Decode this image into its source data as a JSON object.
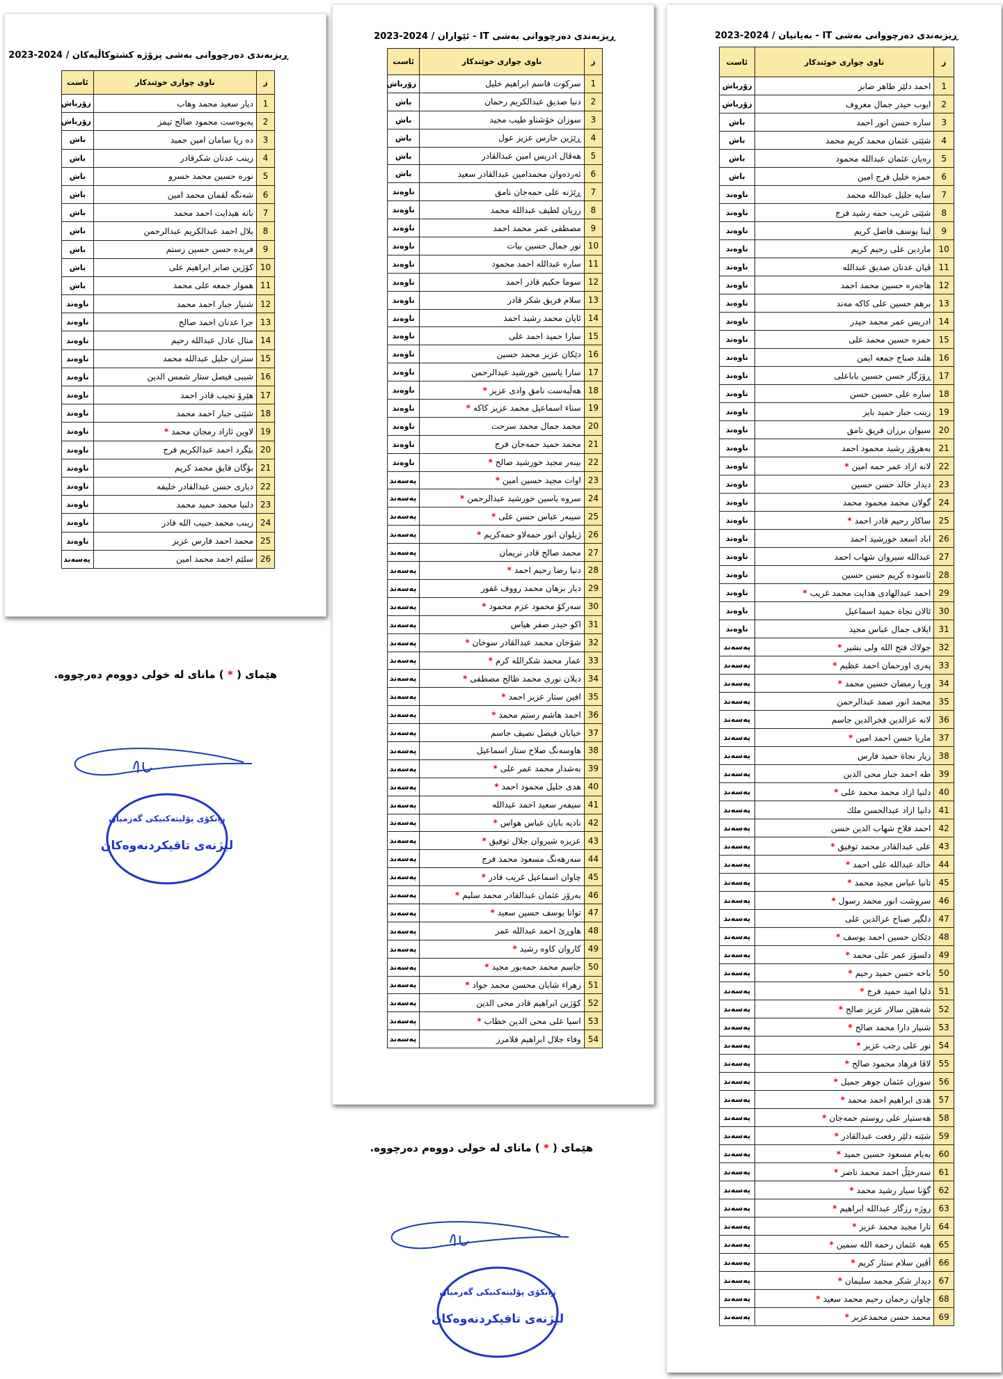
{
  "headers": [
    "ز",
    "ناوی چواری خوێندکار",
    "ئاست"
  ],
  "note": {
    "before": "هێمای (",
    "star": "*",
    "after": ") مانای لە خولی دووەم دەرچووە."
  },
  "stamp": {
    "top": "زانكۆی پۆلیتەكنیكی گەرمیان",
    "bottom": "لیژنەی تاقیكردنەوەكان"
  },
  "tables": [
    {
      "title": "ڕیزبەندی دەرچووانی بەشی پرۆژە کشتوکاڵیەکان / 2024-2023",
      "rows": [
        [
          1,
          "دیار سعید محمد وهاب",
          "زۆرباش"
        ],
        [
          2,
          "پەیوەست محمود صالح تیمز",
          "زۆرباش"
        ],
        [
          3,
          "دە ریا سامان امین حمید",
          "باش"
        ],
        [
          4,
          "زینب عدنان شکرقادر",
          "باش"
        ],
        [
          5,
          "نورە حسین محمد خسرو",
          "باش"
        ],
        [
          6,
          "شەنگە لقمان محمد امین",
          "باش"
        ],
        [
          7,
          "بانە هیدایت احمد محمد",
          "باش"
        ],
        [
          8,
          "بلال احمد عبدالکریم عبدالرحمن",
          "باش"
        ],
        [
          9,
          "فریدە حسن حسین رستم",
          "باش"
        ],
        [
          10,
          "کۆژین صابر ابراهیم علی",
          "باش"
        ],
        [
          11,
          "هموار جمعە علی محمد",
          "باش"
        ],
        [
          12,
          "شنیار جبار احمد محمد",
          "ناوەند"
        ],
        [
          13,
          "جرا عدنان احمد صالح",
          "ناوەند"
        ],
        [
          14,
          "منال عادل عبداللە رحیم",
          "ناوەند"
        ],
        [
          15,
          "ستران جلیل عبداللە محمد",
          "ناوەند"
        ],
        [
          16,
          "شیبی فیصل ستار شمس الدین",
          "ناوەند"
        ],
        [
          17,
          "هێرۆ نجیب قادر احمد",
          "ناوەند"
        ],
        [
          18,
          "شێتی جبار احمد محمد",
          "ناوەند"
        ],
        [
          19,
          "لاوین ئازاد رمجان محمد",
          "ناوەند",
          "*"
        ],
        [
          20,
          "بێگرد احمد عبدالکریم فرج",
          "ناوەند"
        ],
        [
          21,
          "بۆگان فایق محمد کریم",
          "ناوەند"
        ],
        [
          22,
          "دیاری حسن عبدالقادر خلیفە",
          "ناوەند"
        ],
        [
          23,
          "دلنیا محمد حمید محمد",
          "ناوەند"
        ],
        [
          24,
          "زینب محمد حبیب اللە قادر",
          "ناوەند"
        ],
        [
          25,
          "محمد احمد فارس عزیز",
          "ناوەند"
        ],
        [
          26,
          "سلێم احمد محمد امین",
          "پەسەند"
        ]
      ]
    },
    {
      "title": "ڕیزبەندی دەرچووانی بەشی IT - ئێواران / 2024-2023",
      "rows": [
        [
          1,
          "سرکوت قاسم ابراهیم خلیل",
          "زۆرباش"
        ],
        [
          2,
          "دنیا صدیق عبدالکریم رحمان",
          "باش"
        ],
        [
          3,
          "سوزان خۆشناو طیب مجید",
          "باش"
        ],
        [
          4,
          "ڕێژین حارس عزیز عول",
          "باش"
        ],
        [
          5,
          "هەڤال ادریس امین عبدالقادر",
          "باش"
        ],
        [
          6,
          "ئەردەوان محمدامین عبدالقادر سعید",
          "باش"
        ],
        [
          7,
          "ڕێژنە علی حمەجان نامق",
          "ناوەند"
        ],
        [
          8,
          "زریان لطیف عبداللە محمد",
          "ناوەند"
        ],
        [
          9,
          "مصطفی عمر محمد احمد",
          "ناوەند"
        ],
        [
          10,
          "نور جمال حسین بیات",
          "ناوەند"
        ],
        [
          11,
          "سارە عبداللە احمد محمود",
          "ناوەند"
        ],
        [
          12,
          "سوما حکیم قادر احمد",
          "ناوەند"
        ],
        [
          13,
          "سلام فریق شکر قادر",
          "ناوەند"
        ],
        [
          14,
          "ئاپان محمد رشید احمد",
          "ناوەند"
        ],
        [
          15,
          "سارا حمید احمد علی",
          "ناوەند"
        ],
        [
          16,
          "دێکان عزیز محمد حسین",
          "ناوەند"
        ],
        [
          17,
          "سارا یاسین خورشید عبدالرحمن",
          "ناوەند"
        ],
        [
          18,
          "هەڵبەست نامق وادی عزیز",
          "ناوەند",
          "*"
        ],
        [
          19,
          "سناء اسماعیل محمد عزیز کاکە",
          "ناوەند",
          "*"
        ],
        [
          20,
          "محمد جمال محمد سرحت",
          "ناوەند"
        ],
        [
          21,
          "محمد حمید حمەجان فرج",
          "ناوەند"
        ],
        [
          22,
          "بینەر مجید خورشید صالح",
          "ناوەند",
          "*"
        ],
        [
          23,
          "اوات مجید حسین امین",
          "پەسەند",
          "*"
        ],
        [
          24,
          "سروە یاسین خورشید عبدالرحمن",
          "پەسەند",
          "*"
        ],
        [
          25,
          "سیبەر عباس حسن علی",
          "پەسەند",
          "*"
        ],
        [
          26,
          "ژیلوان انور حمەلاو حمەکریم",
          "پەسەند",
          "*"
        ],
        [
          27,
          "محمد صالح قادر نریمان",
          "پەسەند"
        ],
        [
          28,
          "دنیا رضا رحیم احمد",
          "پەسەند",
          "*"
        ],
        [
          29,
          "دیار برهان محمد رووف غفور",
          "پەسەند"
        ],
        [
          30,
          "سەرکۆ محمود عزم محمود",
          "پەسەند",
          "*"
        ],
        [
          31,
          "اکو حیدر صفر هیاس",
          "پەسەند"
        ],
        [
          32,
          "شۆخان محمد عبدالقادر سوخان",
          "پەسەند",
          "*"
        ],
        [
          33,
          "عمار محمد شکراللە کرم",
          "پەسەند",
          "*"
        ],
        [
          34,
          "دیلان نوری محمد ظالح مصطفی",
          "پەسەند",
          "*"
        ],
        [
          35,
          "افین ستار عزیز احمد",
          "پەسەند",
          "*"
        ],
        [
          36,
          "احمد هاشم رستم محمد",
          "پەسەند",
          "*"
        ],
        [
          37,
          "خیابان فیصل نصیف جاسم",
          "پەسەند"
        ],
        [
          38,
          "هاوسەنگ صلاح ستار اسماعیل",
          "پەسەند"
        ],
        [
          39,
          "بەشدار محمد عمر علی",
          "پەسەند",
          "*"
        ],
        [
          40,
          "هدی جلیل محمود احمد",
          "پەسەند",
          "*"
        ],
        [
          41,
          "سیفەر سعید احمد عبداللە",
          "پەسەند"
        ],
        [
          42,
          "نادیە بابان عباس هواس",
          "پەسەند",
          "*"
        ],
        [
          43,
          "عزیزە شیروان جلال توفیق",
          "پەسەند",
          "*"
        ],
        [
          44,
          "سەرهەنگ مسعود محمد فرج",
          "پەسەند"
        ],
        [
          45,
          "چاوان اسماعیل غریب قادر",
          "پەسەند",
          "*"
        ],
        [
          46,
          "بەرۆز عثمان عبدالقادر محمد سلیم",
          "پەسەند",
          "*"
        ],
        [
          47,
          "توانا یوسف حسین سعید",
          "پەسەند",
          "*"
        ],
        [
          48,
          "هاوڕێ احمد عبداللە عمر",
          "پەسەند"
        ],
        [
          49,
          "کاروان کاوە رشید",
          "پەسەند",
          "*"
        ],
        [
          50,
          "جاسم محمد حمەبور مجید",
          "پەسەند",
          "*"
        ],
        [
          51,
          "زهراء شایان محسن محمد جواد",
          "پەسەند",
          "*"
        ],
        [
          52,
          "کۆژین ابراهیم قادر محی الدین",
          "پەسەند"
        ],
        [
          53,
          "اسیا علی محی الدین خطاب",
          "پەسەند",
          "*"
        ],
        [
          54,
          "وفاء جلال ابراهیم فلامرز",
          "پەسەند"
        ]
      ]
    },
    {
      "title": "ڕیزبەندی دەرچووانی بەشی IT - بەیانیان / 2024-2023",
      "rows": [
        [
          1,
          "احمد دلێر طاهر صابر",
          "زۆرباش"
        ],
        [
          2,
          "ایوب حیدر جمال معروف",
          "زۆرباش"
        ],
        [
          3,
          "سارە حسن انور احمد",
          "باش"
        ],
        [
          4,
          "شێتی عثمان محمد کریم محمد",
          "باش"
        ],
        [
          5,
          "رەیان عثمان عبداللە محمود",
          "باش"
        ],
        [
          6,
          "حمزە خلیل فرج امین",
          "باش"
        ],
        [
          7,
          "سایە جلیل عبداللە محمد",
          "ناوەند"
        ],
        [
          8,
          "شێتی غریب حمە رشید فرج",
          "ناوەند"
        ],
        [
          9,
          "لینا یوسف فاضل کریم",
          "ناوەند"
        ],
        [
          10,
          "ماردین علی رحیم کریم",
          "ناوەند"
        ],
        [
          11,
          "ڤیان عدنان صدیق عبداللە",
          "ناوەند"
        ],
        [
          12,
          "هاجەرە حسین محمد احمد",
          "ناوەند"
        ],
        [
          13,
          "برهم حسین علی کاکە مەند",
          "ناوەند"
        ],
        [
          14,
          "ادریس عمر محمد حیدر",
          "ناوەند"
        ],
        [
          15,
          "حمزە حسین محمد علی",
          "ناوەند"
        ],
        [
          16,
          "هلند صباح جمعە ایمن",
          "ناوەند"
        ],
        [
          17,
          "ڕۆژگار حسن حسین باباعلی",
          "ناوەند"
        ],
        [
          18,
          "سارە علی حسین حسن",
          "ناوەند"
        ],
        [
          19,
          "زینب جبار حمید بایز",
          "ناوەند"
        ],
        [
          20,
          "سیوان برزان فریق نامق",
          "ناوەند"
        ],
        [
          21,
          "بەهرۆز رشید محمود احمد",
          "ناوەند"
        ],
        [
          22,
          "لانە ازاد عمر حمە امین",
          "ناوەند",
          "*"
        ],
        [
          23,
          "دیدار خالد حسن حسین",
          "ناوەند"
        ],
        [
          24,
          "گولان محمد محمود محمد",
          "ناوەند"
        ],
        [
          25,
          "ساکار رحیم قادر احمد",
          "ناوەند",
          "*"
        ],
        [
          26,
          "اباد اسعد خورشید احمد",
          "ناوەند"
        ],
        [
          27,
          "عبداللە سیروان شهاب احمد",
          "ناوەند"
        ],
        [
          28,
          "ئاسودە کریم حسن حسین",
          "ناوەند"
        ],
        [
          29,
          "احمد عبدالهادی هدایت محمد غریب",
          "ناوەند",
          "*"
        ],
        [
          30,
          "ئالان نجاة حمید اسماعیل",
          "ناوەند"
        ],
        [
          31,
          "ایلاف جمال عباس مجید",
          "ناوەند"
        ],
        [
          32,
          "جولاك فتح اللە ولی بشیر",
          "پەسەند",
          "*"
        ],
        [
          33,
          "پەری اورحمان احمد عظیم",
          "پەسەند",
          "*"
        ],
        [
          34,
          "وریا رمضان حسین محمد",
          "پەسەند",
          "*"
        ],
        [
          35,
          "محمد انور صمد عبدالرحمن",
          "پەسەند"
        ],
        [
          36,
          "لانە عزالدین فخرالدین جاسم",
          "پەسەند"
        ],
        [
          37,
          "ماریا حسن احمد امین",
          "پەسەند",
          "*"
        ],
        [
          38,
          "زیار نجاة حمید فارس",
          "پەسەند"
        ],
        [
          39,
          "طە احمد جبار محی الدین",
          "پەسەند"
        ],
        [
          40,
          "دلنیا ازاد محمد محمد علی",
          "پەسەند",
          "*"
        ],
        [
          41,
          "دانیا ازاد عبدالحسن ملك",
          "پەسەند"
        ],
        [
          42,
          "احمد فلاح شهاب الدین حسن",
          "پەسەند"
        ],
        [
          43,
          "علی عبدالقادر محمد توفیق",
          "پەسەند",
          "*"
        ],
        [
          44,
          "خالد عبداللە علی احمد",
          "پەسەند",
          "*"
        ],
        [
          45,
          "تانیا عباس مجید محمد",
          "پەسەند",
          "*"
        ],
        [
          46,
          "سروشت انور محمد رسول",
          "پەسەند",
          "*"
        ],
        [
          47,
          "دلگیر صباح عزالدین علی",
          "پەسەند"
        ],
        [
          48,
          "دێکان حسین احمد یوسف",
          "پەسەند",
          "*"
        ],
        [
          49,
          "دلسۆز عمر علی محمد",
          "پەسەند",
          "*"
        ],
        [
          50,
          "باخە حسن حمید رحیم",
          "پەسەند",
          "*"
        ],
        [
          51,
          "دلیا امید حمید فرج",
          "پەسەند",
          "*"
        ],
        [
          52,
          "شەهێن سالار عزیز صالح",
          "پەسەند",
          "*"
        ],
        [
          53,
          "شنیار دارا محمد صالح",
          "پەسەند",
          "*"
        ],
        [
          54,
          "نور علی رجب عزیز",
          "پەسەند",
          "*"
        ],
        [
          55,
          "لاڤا فرهاد محمود صالح",
          "پەسەند",
          "*"
        ],
        [
          56,
          "سوزان عثمان جوهر جمیل",
          "پەسەند",
          "*"
        ],
        [
          57,
          "هدی ابراهیم احمد محمد",
          "پەسەند",
          "*"
        ],
        [
          58,
          "هەستیار علی روستم حمەجان",
          "پەسەند",
          "*"
        ],
        [
          59,
          "شێنە دلێر رفعت عبدالقادر",
          "پەسەند",
          "*"
        ],
        [
          60,
          "بەیام مسعود حسین حمید",
          "پەسەند",
          "*"
        ],
        [
          61,
          "سەرخێڵ احمد محمد ناصر",
          "پەسەند",
          "*"
        ],
        [
          62,
          "گۆنا سیار رشید محمد",
          "پەسەند",
          "*"
        ],
        [
          63,
          "روژە رزگار عبداللە ابراهیم",
          "پەسەند",
          "*"
        ],
        [
          64,
          "تارا مجید محمد عزیز",
          "پەسەند",
          "*"
        ],
        [
          65,
          "هبە عثمان رحمە اللە سمین",
          "پەسەند",
          "*"
        ],
        [
          66,
          "أڤین سلام ستار کریم",
          "پەسەند",
          "*"
        ],
        [
          67,
          "دیدار شکر محمد سلیمان",
          "پەسەند",
          "*"
        ],
        [
          68,
          "چاوان رحمان رحیم محمد سعید",
          "پەسەند",
          "*"
        ],
        [
          69,
          "محمد حسن محمدعزیز",
          "پەسەند",
          "*"
        ]
      ]
    }
  ]
}
